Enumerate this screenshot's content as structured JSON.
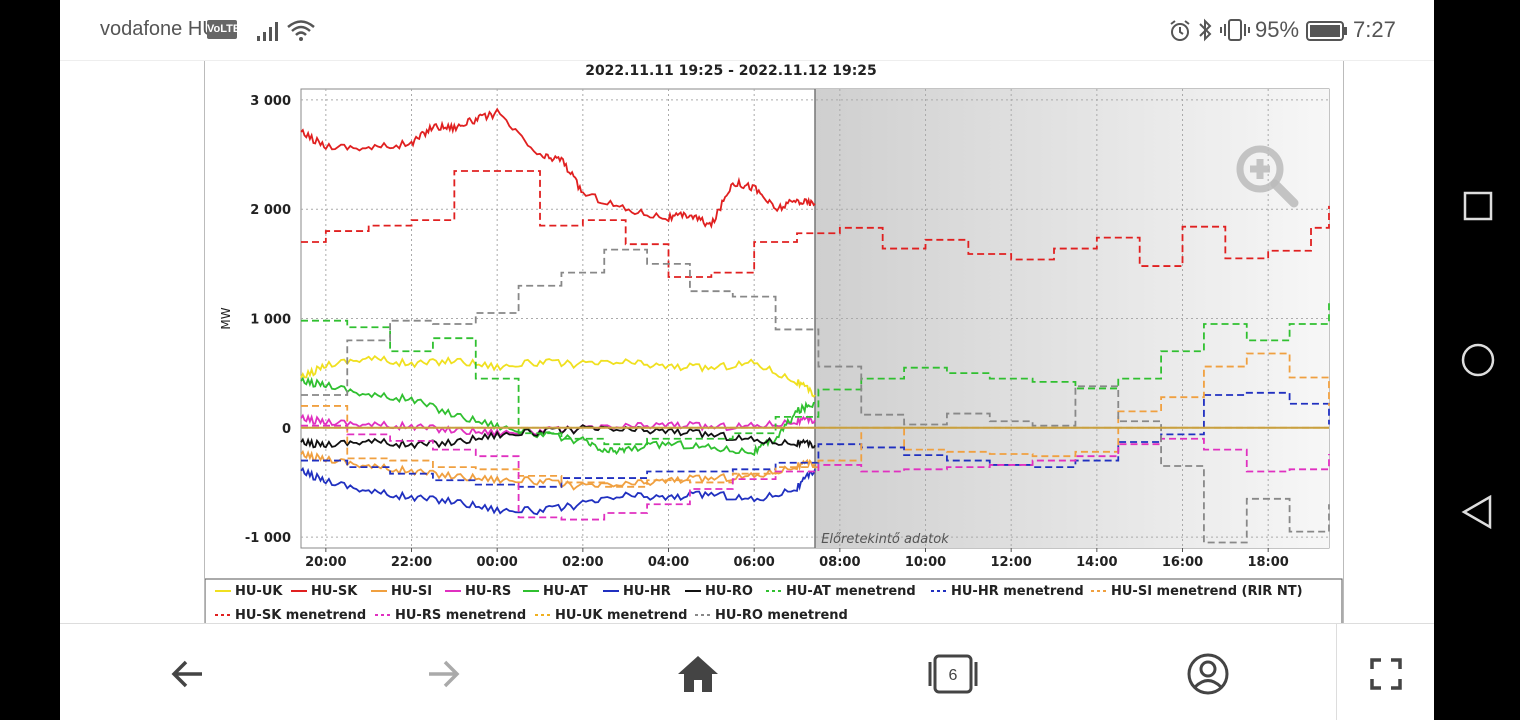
{
  "status_bar": {
    "carrier": "vodafone HU",
    "volte": "VoLTE",
    "battery_percent": "95%",
    "time": "7:27",
    "icons": [
      "signal-icon",
      "wifi-icon",
      "alarm-icon",
      "bluetooth-icon",
      "vibrate-icon",
      "battery-icon"
    ]
  },
  "chart_data": {
    "type": "line",
    "title": "2022.11.11 19:25 - 2022.11.12 19:25",
    "ylabel": "MW",
    "xlabel": "",
    "ylim": [
      -1100,
      3100
    ],
    "yticks": [
      -1000,
      0,
      1000,
      2000,
      3000
    ],
    "ytick_labels": [
      "-1 000",
      "0",
      "1 000",
      "2 000",
      "3 000"
    ],
    "xlim": [
      19.42,
      43.42
    ],
    "xticks": [
      20,
      22,
      24,
      26,
      28,
      30,
      32,
      34,
      36,
      38,
      40,
      42
    ],
    "xtick_labels": [
      "20:00",
      "22:00",
      "00:00",
      "02:00",
      "04:00",
      "06:00",
      "08:00",
      "10:00",
      "12:00",
      "14:00",
      "16:00",
      "18:00"
    ],
    "forecast_start": 31.42,
    "forecast_label": "Előretekintő adatok",
    "grid": true,
    "legend_position": "bottom",
    "series": [
      {
        "name": "HU-UK",
        "color": "#f0e020",
        "style": "solid",
        "x": [
          19.42,
          20,
          21,
          22,
          23,
          24,
          25,
          26,
          27,
          28,
          29,
          30,
          31,
          31.42
        ],
        "y": [
          450,
          580,
          640,
          580,
          620,
          560,
          600,
          580,
          600,
          560,
          550,
          600,
          420,
          300
        ]
      },
      {
        "name": "HU-SK",
        "color": "#e02020",
        "style": "solid",
        "x": [
          19.42,
          20,
          21,
          22,
          22.5,
          23,
          23.5,
          24,
          25,
          25.5,
          26,
          27,
          28,
          28.5,
          29,
          29.5,
          30,
          30.5,
          31,
          31.42
        ],
        "y": [
          2700,
          2580,
          2560,
          2600,
          2760,
          2750,
          2820,
          2880,
          2480,
          2460,
          2150,
          2000,
          1920,
          1950,
          1850,
          2250,
          2200,
          2000,
          2080,
          2050
        ]
      },
      {
        "name": "HU-SI",
        "color": "#f0a040",
        "style": "solid",
        "x": [
          19.42,
          20,
          21,
          22,
          23,
          24,
          25,
          26,
          27,
          28,
          29,
          30,
          31,
          31.42
        ],
        "y": [
          -250,
          -280,
          -350,
          -400,
          -440,
          -470,
          -490,
          -540,
          -520,
          -480,
          -460,
          -440,
          -350,
          -320
        ]
      },
      {
        "name": "HU-RS",
        "color": "#e030c0",
        "style": "solid",
        "x": [
          19.42,
          20,
          21,
          22,
          23,
          24,
          25,
          26,
          27,
          28,
          29,
          30,
          31,
          31.42
        ],
        "y": [
          80,
          60,
          30,
          10,
          -20,
          -40,
          -30,
          -10,
          10,
          30,
          10,
          20,
          60,
          70
        ]
      },
      {
        "name": "HU-AT",
        "color": "#30c030",
        "style": "solid",
        "x": [
          19.42,
          20,
          21,
          22,
          23,
          24,
          25,
          26,
          26.5,
          27,
          28,
          29,
          30,
          30.5,
          31,
          31.42
        ],
        "y": [
          420,
          400,
          300,
          260,
          120,
          20,
          -60,
          -120,
          -220,
          -200,
          -140,
          -180,
          -220,
          -100,
          150,
          230
        ]
      },
      {
        "name": "HU-HR",
        "color": "#2030c0",
        "style": "solid",
        "x": [
          19.42,
          20,
          21,
          22,
          23,
          24,
          25,
          26,
          27,
          28,
          29,
          30,
          31,
          31.42
        ],
        "y": [
          -400,
          -480,
          -580,
          -640,
          -670,
          -750,
          -760,
          -700,
          -620,
          -640,
          -600,
          -660,
          -550,
          -380
        ]
      },
      {
        "name": "HU-RO",
        "color": "#111111",
        "style": "solid",
        "x": [
          19.42,
          20,
          21,
          22,
          23,
          24,
          25,
          26,
          27,
          28,
          29,
          30,
          31,
          31.42
        ],
        "y": [
          -140,
          -150,
          -120,
          -160,
          -130,
          -60,
          -40,
          -10,
          -20,
          -30,
          -60,
          -110,
          -140,
          -160
        ]
      },
      {
        "name": "HU-AT menetrend",
        "color": "#30c030",
        "style": "dashed",
        "x": [
          19.42,
          20.5,
          21.5,
          22.5,
          23.5,
          24.5,
          25.5,
          26.5,
          27.5,
          28.5,
          29.5,
          30.5,
          31.5,
          32.5,
          33.5,
          34.5,
          35.5,
          36.5,
          37.5,
          38.5,
          39.5,
          40.5,
          41.5,
          42.5,
          43.42
        ],
        "y": [
          980,
          920,
          700,
          820,
          450,
          -50,
          -100,
          -150,
          -100,
          -100,
          -50,
          100,
          350,
          450,
          550,
          500,
          450,
          420,
          360,
          450,
          700,
          950,
          800,
          950,
          1150
        ]
      },
      {
        "name": "HU-HR menetrend",
        "color": "#2030c0",
        "style": "dashed",
        "x": [
          19.42,
          20.5,
          21.5,
          22.5,
          23.5,
          24.5,
          25.5,
          26.5,
          27.5,
          28.5,
          29.5,
          30.5,
          31.5,
          32.5,
          33.5,
          34.5,
          35.5,
          36.5,
          37.5,
          38.5,
          39.5,
          40.5,
          41.5,
          42.5,
          43.42
        ],
        "y": [
          -300,
          -360,
          -420,
          -480,
          -520,
          -540,
          -460,
          -460,
          -400,
          -400,
          -380,
          -320,
          -150,
          -180,
          -250,
          -300,
          -340,
          -360,
          -300,
          -130,
          -60,
          300,
          320,
          220,
          30
        ]
      },
      {
        "name": "HU-SI menetrend (RIR NT)",
        "color": "#f0a040",
        "style": "dashed",
        "x": [
          19.42,
          20.5,
          21.5,
          22.5,
          23.5,
          24.5,
          25.5,
          26.5,
          27.5,
          28.5,
          29.5,
          30.5,
          31.5,
          32.5,
          33.5,
          34.5,
          35.5,
          36.5,
          37.5,
          38.5,
          39.5,
          40.5,
          41.5,
          42.5,
          43.42
        ],
        "y": [
          200,
          -280,
          -300,
          -360,
          -380,
          -440,
          -500,
          -540,
          -480,
          -500,
          -420,
          -360,
          -300,
          0,
          -200,
          -220,
          -240,
          -260,
          -220,
          150,
          280,
          560,
          680,
          460,
          200
        ]
      },
      {
        "name": "HU-SK menetrend",
        "color": "#e02020",
        "style": "dashed",
        "x": [
          19.42,
          20,
          21,
          22,
          23,
          24,
          25,
          26,
          27,
          28,
          29,
          30,
          31,
          32,
          33,
          34,
          35,
          36,
          37,
          38,
          39,
          40,
          41,
          42,
          43,
          43.42
        ],
        "y": [
          1700,
          1800,
          1850,
          1900,
          2350,
          2350,
          1850,
          1900,
          1680,
          1380,
          1420,
          1700,
          1780,
          1830,
          1640,
          1720,
          1590,
          1540,
          1640,
          1740,
          1480,
          1840,
          1550,
          1620,
          1830,
          2030
        ]
      },
      {
        "name": "HU-RS menetrend",
        "color": "#e030c0",
        "style": "dashed",
        "x": [
          19.42,
          20.5,
          21.5,
          22.5,
          23.5,
          24.5,
          25.5,
          26.5,
          27.5,
          28.5,
          29.5,
          30.5,
          31.5,
          32.5,
          33.5,
          34.5,
          35.5,
          36.5,
          37.5,
          38.5,
          39.5,
          40.5,
          41.5,
          42.5,
          43.42
        ],
        "y": [
          20,
          -60,
          -120,
          -200,
          -260,
          -820,
          -840,
          -780,
          -700,
          -560,
          -470,
          -400,
          -340,
          -400,
          -380,
          -360,
          -340,
          -300,
          -260,
          -150,
          -100,
          -200,
          -400,
          -380,
          -240
        ]
      },
      {
        "name": "HU-UK menetrend",
        "color": "#f0b020",
        "style": "dashed",
        "x": [
          19.42,
          20.5,
          21.5,
          22.5,
          23.5,
          24.5,
          25.5,
          26.5,
          27.5,
          28.5,
          29.5,
          30.5,
          31.5,
          32.5,
          33.5,
          34.5,
          35.5,
          36.5,
          37.5,
          38.5,
          39.5,
          40.5,
          41.5,
          42.5,
          43.42
        ],
        "y": [
          0,
          0,
          0,
          0,
          0,
          0,
          0,
          0,
          0,
          0,
          0,
          0,
          0,
          0,
          0,
          0,
          0,
          0,
          0,
          0,
          0,
          0,
          0,
          0,
          0
        ]
      },
      {
        "name": "HU-RO menetrend",
        "color": "#888888",
        "style": "dashed",
        "x": [
          19.42,
          20.5,
          21.5,
          22.5,
          23.5,
          24.5,
          25.5,
          26.5,
          27.5,
          28.5,
          29.5,
          30.5,
          31.5,
          32.5,
          33.5,
          34.5,
          35.5,
          36.5,
          37.5,
          38.5,
          39.5,
          40.5,
          41.5,
          42.5,
          43.42
        ],
        "y": [
          300,
          800,
          980,
          950,
          1050,
          1300,
          1420,
          1630,
          1500,
          1250,
          1200,
          900,
          560,
          120,
          30,
          130,
          60,
          20,
          380,
          60,
          -350,
          -1050,
          -650,
          -950,
          -700
        ]
      }
    ]
  },
  "nav": {
    "tab_count": "6",
    "buttons": [
      "back-button",
      "forward-button",
      "home-button",
      "tabs-button",
      "account-button",
      "fullscreen-button"
    ]
  }
}
